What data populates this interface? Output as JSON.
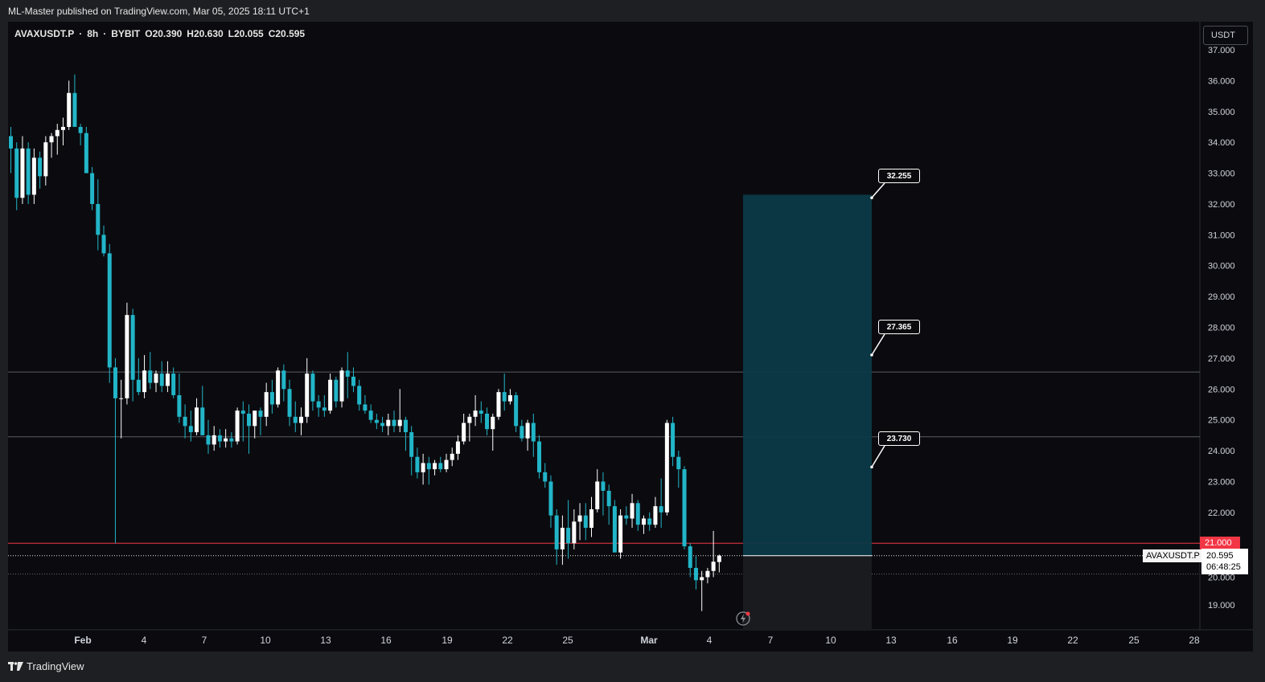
{
  "header": {
    "publish_text": "ML-Master published on TradingView.com, Mar 05, 2025 18:11 UTC+1"
  },
  "footer": {
    "brand": "TradingView",
    "logo_icon": "tradingview-logo-icon"
  },
  "symbol": {
    "name": "AVAXUSDT.P",
    "sep1": "·",
    "interval": "8h",
    "sep2": "·",
    "exchange": "BYBIT",
    "open": "O20.390",
    "high": "H20.630",
    "low": "L20.055",
    "close": "C20.595"
  },
  "currency_button": "USDT",
  "last_price": {
    "symbol_tag": "AVAXUSDT.P",
    "price": "20.595",
    "countdown": "06:48:25"
  },
  "red_line_label": "21.000",
  "targets": [
    {
      "label": "32.255",
      "value": 32.255
    },
    {
      "label": "27.365",
      "value": 27.365
    },
    {
      "label": "23.730",
      "value": 23.73
    }
  ],
  "colors": {
    "up": "#ffffff",
    "down": "#22b5c8",
    "red_line": "#f23645",
    "zone_fill": "#0b3a47",
    "stop_fill": "#1a1b1f",
    "grid_line": "#4a4c52"
  },
  "chart_data": {
    "type": "candlestick",
    "ylim": [
      18.4,
      37.4
    ],
    "y_ticks": [
      19,
      20,
      21,
      22,
      23,
      24,
      25,
      26,
      27,
      28,
      29,
      30,
      31,
      32,
      33,
      34,
      35,
      36,
      37
    ],
    "y_tick_labels": [
      "19.000",
      "20.000",
      "21.000",
      "22.000",
      "23.000",
      "24.000",
      "25.000",
      "26.000",
      "27.000",
      "28.000",
      "29.000",
      "30.000",
      "31.000",
      "32.000",
      "33.000",
      "34.000",
      "35.000",
      "36.000",
      "37.000"
    ],
    "x_tick_labels": [
      "Feb",
      "4",
      "7",
      "10",
      "13",
      "16",
      "19",
      "22",
      "25",
      "Mar",
      "4",
      "7",
      "10",
      "13",
      "16",
      "19",
      "22",
      "25",
      "28"
    ],
    "horizontal_levels": [
      {
        "value": 26.55,
        "style": "solid-gray"
      },
      {
        "value": 24.45,
        "style": "solid-gray"
      },
      {
        "value": 21.0,
        "style": "solid-red"
      },
      {
        "value": 20.595,
        "style": "dotted-white"
      },
      {
        "value": 20.0,
        "style": "dotted-gray"
      }
    ],
    "long_position": {
      "entry": 20.595,
      "take_profit": 32.3,
      "stop": 18.3
    },
    "candles": [
      [
        34.2,
        34.5,
        33.0,
        33.8
      ],
      [
        33.8,
        34.0,
        31.8,
        32.2
      ],
      [
        32.2,
        34.2,
        32.0,
        33.8
      ],
      [
        33.8,
        34.0,
        32.0,
        32.3
      ],
      [
        32.3,
        33.8,
        32.0,
        33.5
      ],
      [
        33.5,
        33.7,
        32.5,
        32.9
      ],
      [
        32.9,
        34.2,
        32.6,
        34.0
      ],
      [
        34.0,
        34.3,
        33.5,
        34.2
      ],
      [
        34.2,
        34.6,
        33.6,
        34.4
      ],
      [
        34.4,
        34.8,
        33.9,
        34.5
      ],
      [
        34.5,
        36.0,
        34.4,
        35.6
      ],
      [
        35.6,
        36.2,
        34.5,
        34.5
      ],
      [
        34.5,
        34.6,
        33.9,
        34.3
      ],
      [
        34.3,
        34.5,
        33.1,
        33.0
      ],
      [
        33.0,
        33.2,
        31.8,
        32.0
      ],
      [
        32.0,
        32.8,
        30.5,
        31.0
      ],
      [
        31.0,
        31.3,
        30.3,
        30.4
      ],
      [
        30.4,
        30.7,
        26.2,
        26.7
      ],
      [
        26.7,
        27.0,
        21.0,
        25.7
      ],
      [
        25.7,
        26.3,
        24.4,
        25.7
      ],
      [
        25.7,
        28.8,
        25.5,
        28.4
      ],
      [
        28.4,
        28.6,
        25.6,
        26.3
      ],
      [
        26.3,
        27.0,
        25.8,
        25.9
      ],
      [
        25.9,
        27.1,
        25.7,
        26.6
      ],
      [
        26.6,
        27.2,
        26.0,
        26.2
      ],
      [
        26.2,
        26.6,
        25.9,
        26.5
      ],
      [
        26.5,
        26.9,
        25.9,
        26.1
      ],
      [
        26.1,
        26.9,
        25.9,
        26.5
      ],
      [
        26.5,
        26.7,
        25.7,
        25.8
      ],
      [
        25.8,
        26.5,
        24.9,
        25.1
      ],
      [
        25.1,
        25.5,
        24.4,
        24.8
      ],
      [
        24.8,
        25.3,
        24.3,
        24.6
      ],
      [
        24.6,
        25.7,
        24.5,
        25.4
      ],
      [
        25.4,
        26.1,
        24.5,
        24.5
      ],
      [
        24.5,
        25.0,
        23.9,
        24.2
      ],
      [
        24.2,
        24.8,
        24.0,
        24.5
      ],
      [
        24.5,
        24.7,
        24.1,
        24.3
      ],
      [
        24.3,
        24.7,
        24.1,
        24.4
      ],
      [
        24.4,
        24.6,
        24.1,
        24.3
      ],
      [
        24.3,
        25.4,
        24.2,
        25.3
      ],
      [
        25.3,
        25.6,
        24.3,
        25.2
      ],
      [
        25.2,
        25.5,
        23.9,
        24.8
      ],
      [
        24.8,
        25.3,
        24.4,
        25.3
      ],
      [
        25.3,
        25.4,
        24.5,
        25.1
      ],
      [
        25.1,
        26.2,
        24.8,
        25.9
      ],
      [
        25.9,
        26.3,
        25.2,
        25.5
      ],
      [
        25.5,
        26.7,
        25.4,
        26.6
      ],
      [
        26.6,
        26.8,
        25.6,
        26.0
      ],
      [
        26.0,
        26.3,
        24.8,
        25.1
      ],
      [
        25.1,
        25.6,
        24.6,
        24.9
      ],
      [
        24.9,
        25.4,
        24.5,
        25.1
      ],
      [
        25.1,
        27.0,
        24.9,
        26.5
      ],
      [
        26.5,
        26.6,
        25.3,
        25.6
      ],
      [
        25.6,
        25.8,
        25.1,
        25.4
      ],
      [
        25.4,
        25.8,
        25.1,
        25.3
      ],
      [
        25.3,
        26.5,
        25.2,
        26.3
      ],
      [
        26.3,
        26.4,
        25.4,
        25.6
      ],
      [
        25.6,
        26.7,
        25.4,
        26.6
      ],
      [
        26.6,
        27.2,
        25.7,
        26.4
      ],
      [
        26.4,
        26.7,
        25.9,
        26.1
      ],
      [
        26.1,
        26.3,
        25.3,
        25.5
      ],
      [
        25.5,
        25.8,
        25.2,
        25.3
      ],
      [
        25.3,
        25.5,
        24.9,
        25.0
      ],
      [
        25.0,
        25.2,
        24.7,
        24.9
      ],
      [
        24.9,
        25.1,
        24.6,
        24.8
      ],
      [
        24.8,
        25.2,
        24.5,
        25.0
      ],
      [
        25.0,
        25.3,
        24.6,
        24.8
      ],
      [
        24.8,
        26.0,
        24.6,
        25.0
      ],
      [
        25.0,
        25.1,
        24.0,
        24.6
      ],
      [
        24.6,
        24.8,
        23.2,
        23.8
      ],
      [
        23.8,
        24.1,
        23.1,
        23.3
      ],
      [
        23.3,
        23.9,
        22.9,
        23.6
      ],
      [
        23.6,
        23.8,
        22.9,
        23.4
      ],
      [
        23.4,
        23.7,
        23.2,
        23.6
      ],
      [
        23.6,
        23.8,
        23.3,
        23.4
      ],
      [
        23.4,
        23.9,
        23.3,
        23.7
      ],
      [
        23.7,
        24.1,
        23.5,
        23.9
      ],
      [
        23.9,
        24.5,
        23.7,
        24.3
      ],
      [
        24.3,
        25.2,
        24.2,
        24.9
      ],
      [
        24.9,
        25.2,
        24.3,
        25.1
      ],
      [
        25.1,
        25.8,
        24.8,
        25.3
      ],
      [
        25.3,
        25.6,
        24.9,
        25.2
      ],
      [
        25.2,
        25.4,
        24.5,
        24.7
      ],
      [
        24.7,
        25.2,
        24.0,
        25.1
      ],
      [
        25.1,
        26.0,
        25.0,
        25.9
      ],
      [
        25.9,
        26.5,
        25.3,
        25.6
      ],
      [
        25.6,
        26.0,
        25.5,
        25.8
      ],
      [
        25.8,
        25.9,
        24.6,
        24.8
      ],
      [
        24.8,
        25.0,
        24.3,
        24.4
      ],
      [
        24.4,
        25.0,
        24.0,
        24.9
      ],
      [
        24.9,
        25.2,
        23.8,
        24.3
      ],
      [
        24.3,
        24.5,
        23.1,
        23.3
      ],
      [
        23.3,
        23.6,
        22.8,
        23.0
      ],
      [
        23.0,
        23.2,
        21.5,
        21.9
      ],
      [
        21.9,
        22.1,
        20.3,
        20.8
      ],
      [
        20.8,
        21.9,
        20.3,
        21.5
      ],
      [
        21.5,
        22.4,
        20.5,
        21.0
      ],
      [
        21.0,
        22.1,
        20.8,
        21.7
      ],
      [
        21.7,
        22.3,
        21.1,
        21.9
      ],
      [
        21.9,
        22.3,
        21.1,
        21.5
      ],
      [
        21.5,
        22.5,
        21.2,
        22.1
      ],
      [
        22.1,
        23.4,
        22.0,
        23.0
      ],
      [
        23.0,
        23.3,
        21.9,
        22.7
      ],
      [
        22.7,
        22.9,
        21.6,
        22.2
      ],
      [
        22.2,
        22.4,
        20.8,
        20.7
      ],
      [
        20.7,
        22.1,
        20.5,
        21.9
      ],
      [
        21.9,
        22.2,
        21.6,
        21.8
      ],
      [
        21.8,
        22.6,
        21.5,
        22.3
      ],
      [
        22.3,
        22.4,
        21.4,
        21.6
      ],
      [
        21.6,
        21.9,
        21.3,
        21.8
      ],
      [
        21.8,
        22.0,
        21.4,
        21.6
      ],
      [
        21.6,
        22.5,
        21.5,
        22.2
      ],
      [
        22.2,
        23.1,
        21.5,
        22.0
      ],
      [
        22.0,
        25.0,
        21.9,
        24.9
      ],
      [
        24.9,
        25.1,
        23.5,
        23.8
      ],
      [
        23.8,
        24.0,
        22.8,
        23.4
      ],
      [
        23.4,
        23.5,
        20.8,
        20.9
      ],
      [
        20.9,
        21.0,
        19.9,
        20.2
      ],
      [
        20.2,
        20.6,
        19.5,
        19.8
      ],
      [
        19.8,
        20.1,
        18.8,
        19.9
      ],
      [
        19.9,
        20.2,
        19.7,
        20.1
      ],
      [
        20.1,
        21.4,
        19.9,
        20.4
      ],
      [
        20.39,
        20.63,
        20.055,
        20.595
      ]
    ]
  }
}
